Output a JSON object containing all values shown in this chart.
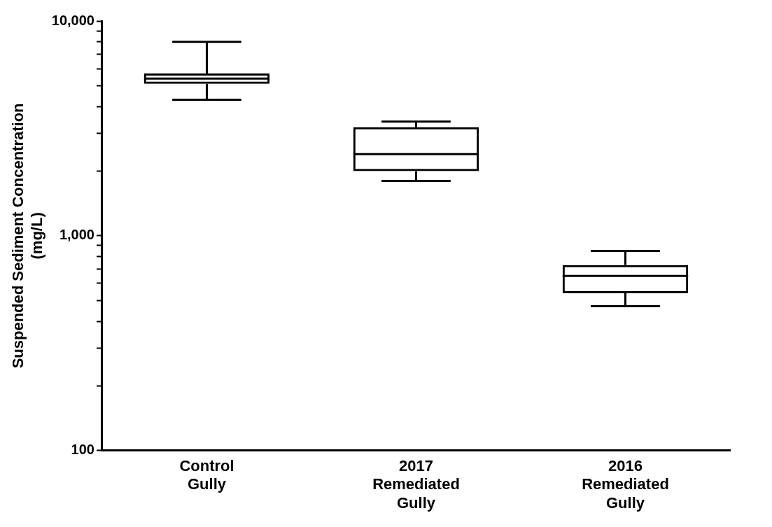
{
  "chart_data": {
    "type": "box",
    "ylabel": "Suspended Sediment Concentration\n(mg/L)",
    "categories": [
      "Control Gully",
      "2017 Remediated Gully",
      "2016 Remediated Gully"
    ],
    "boxes": [
      {
        "low": 4300,
        "q1": 5100,
        "median": 5400,
        "q3": 5700,
        "high": 8000
      },
      {
        "low": 1800,
        "q1": 2000,
        "median": 2400,
        "q3": 3200,
        "high": 3400
      },
      {
        "low": 470,
        "q1": 540,
        "median": 650,
        "q3": 730,
        "high": 850
      }
    ],
    "color": "#000000",
    "log": "y",
    "ylim": [
      100,
      10000
    ],
    "yticks": [
      {
        "value": 100,
        "label": "100"
      },
      {
        "value": 200,
        "label": null
      },
      {
        "value": 300,
        "label": null
      },
      {
        "value": 400,
        "label": null
      },
      {
        "value": 500,
        "label": null
      },
      {
        "value": 600,
        "label": null
      },
      {
        "value": 700,
        "label": null
      },
      {
        "value": 800,
        "label": null
      },
      {
        "value": 900,
        "label": null
      },
      {
        "value": 1000,
        "label": "1,000"
      },
      {
        "value": 2000,
        "label": null
      },
      {
        "value": 3000,
        "label": null
      },
      {
        "value": 4000,
        "label": null
      },
      {
        "value": 5000,
        "label": null
      },
      {
        "value": 6000,
        "label": null
      },
      {
        "value": 7000,
        "label": null
      },
      {
        "value": 8000,
        "label": null
      },
      {
        "value": 9000,
        "label": null
      },
      {
        "value": 10000,
        "label": "10,000"
      }
    ],
    "grid": false
  }
}
